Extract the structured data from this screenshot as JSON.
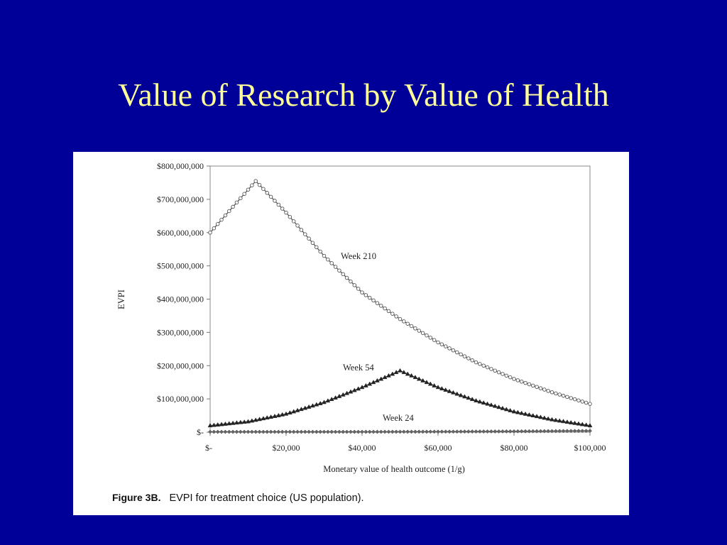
{
  "slide": {
    "title": "Value of Research by Value of Health",
    "background_color": "#000099",
    "title_color": "#ffff99"
  },
  "caption": {
    "label": "Figure 3B.",
    "text": "EVPI for treatment choice (US population)."
  },
  "chart_data": {
    "type": "line",
    "xlabel": "Monetary value of health outcome (1/g)",
    "ylabel": "EVPI",
    "xlim": [
      0,
      100000
    ],
    "ylim": [
      0,
      800000000
    ],
    "x_ticks": [
      0,
      20000,
      40000,
      60000,
      80000,
      100000
    ],
    "x_tick_labels": [
      "$-",
      "$20,000",
      "$40,000",
      "$60,000",
      "$80,000",
      "$100,000"
    ],
    "y_ticks": [
      0,
      100000000,
      200000000,
      300000000,
      400000000,
      500000000,
      600000000,
      700000000,
      800000000
    ],
    "y_tick_labels": [
      "$-",
      "$100,000,000",
      "$200,000,000",
      "$300,000,000",
      "$400,000,000",
      "$500,000,000",
      "$600,000,000",
      "$700,000,000",
      "$800,000,000"
    ],
    "grid": false,
    "series": [
      {
        "name": "Week 210",
        "marker": "circle",
        "x": [
          0,
          12000,
          20000,
          30000,
          40000,
          50000,
          60000,
          70000,
          80000,
          90000,
          100000
        ],
        "values": [
          600000000,
          755000000,
          660000000,
          530000000,
          420000000,
          340000000,
          270000000,
          210000000,
          160000000,
          120000000,
          85000000
        ]
      },
      {
        "name": "Week 54",
        "marker": "triangle",
        "x": [
          0,
          10000,
          20000,
          30000,
          40000,
          50000,
          60000,
          70000,
          80000,
          90000,
          100000
        ],
        "values": [
          20000000,
          32000000,
          55000000,
          90000000,
          135000000,
          185000000,
          135000000,
          95000000,
          62000000,
          38000000,
          20000000
        ]
      },
      {
        "name": "Week 24",
        "marker": "diamond",
        "x": [
          0,
          20000,
          40000,
          60000,
          80000,
          100000
        ],
        "values": [
          1000000,
          1000000,
          1000000,
          1500000,
          2500000,
          4000000
        ]
      }
    ]
  }
}
